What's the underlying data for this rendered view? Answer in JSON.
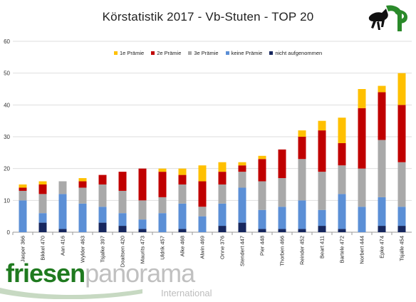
{
  "chart_data": {
    "type": "bar",
    "stacked": true,
    "title": "Körstatistik 2017 - Vb-Stuten  - TOP 20",
    "ylim": [
      0,
      60
    ],
    "yticks": [
      0,
      10,
      20,
      30,
      40,
      50,
      60
    ],
    "grid": true,
    "legend_position": "top-left",
    "categories": [
      "Jasper 366",
      "Bikkel 470",
      "Aan 416",
      "Wylder 463",
      "Tsjalke 397",
      "Doaitsen 420",
      "Maurits 473",
      "Uldrik 457",
      "Alke 468",
      "Alwin 469",
      "Onne 376",
      "Stendert 447",
      "Pier 448",
      "Thorben 466",
      "Reinder 452",
      "Beart 411",
      "Bartele 472",
      "Norbert 444",
      "Epke 474",
      "Tsjalle 454"
    ],
    "series": [
      {
        "name": "nicht aufgenommen",
        "color": "#17275e",
        "values": [
          0,
          3,
          1,
          0,
          3,
          2,
          1,
          0,
          1,
          0,
          2,
          3,
          1,
          1,
          1,
          2,
          1,
          0,
          2,
          2
        ]
      },
      {
        "name": "keine Prämie",
        "color": "#5b8fd6",
        "values": [
          10,
          3,
          11,
          9,
          5,
          4,
          3,
          6,
          8,
          5,
          7,
          11,
          6,
          7,
          9,
          5,
          11,
          8,
          9,
          6
        ]
      },
      {
        "name": "3e Prämie",
        "color": "#a9a9a9",
        "values": [
          3,
          6,
          4,
          5,
          7,
          7,
          6,
          5,
          6,
          3,
          6,
          5,
          9,
          9,
          13,
          12,
          9,
          12,
          18,
          14
        ]
      },
      {
        "name": "2e Prämie",
        "color": "#c00000",
        "values": [
          1,
          3,
          0,
          2,
          3,
          6,
          10,
          8,
          3,
          8,
          4,
          2,
          7,
          9,
          7,
          13,
          7,
          19,
          15,
          18
        ]
      },
      {
        "name": "1e Prämie",
        "color": "#ffc000",
        "values": [
          1,
          1,
          0,
          1,
          0,
          0,
          0,
          1,
          2,
          5,
          3,
          1,
          1,
          0,
          2,
          3,
          8,
          6,
          2,
          10
        ]
      }
    ]
  },
  "legend_order": [
    4,
    3,
    2,
    1,
    0
  ],
  "branding": {
    "brand_part1": "friesen",
    "brand_part2": "panorama",
    "brand_sub": "International",
    "brand_color": "#1f7a1f"
  }
}
